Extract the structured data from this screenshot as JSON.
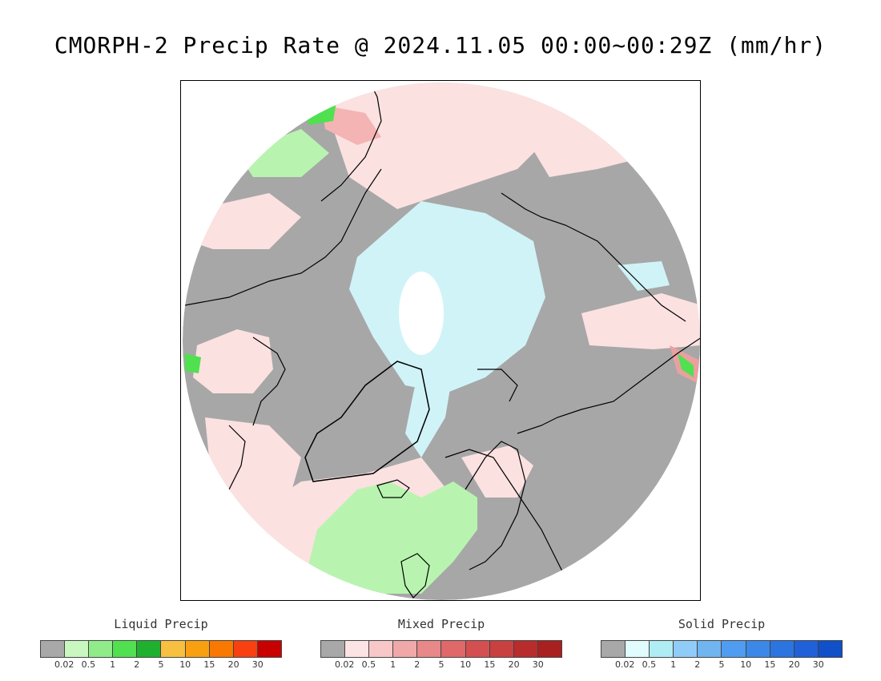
{
  "title": "CMORPH-2 Precip Rate @ 2024.11.05 00:00~00:29Z (mm/hr)",
  "map": {
    "projection": "north polar stereographic",
    "ocean_no_precip_color": "#a7a7a7",
    "coastline_color": "#000000"
  },
  "legends": [
    {
      "title": "Liquid Precip",
      "colors": [
        "#a8a8a8",
        "#c8f8c0",
        "#90ec88",
        "#50e050",
        "#20b030",
        "#f8c040",
        "#f8a010",
        "#f87800",
        "#f84010",
        "#c80000"
      ],
      "ticks": [
        "0.02",
        "0.5",
        "1",
        "2",
        "5",
        "10",
        "15",
        "20",
        "30"
      ]
    },
    {
      "title": "Mixed Precip",
      "colors": [
        "#a8a8a8",
        "#fce4e4",
        "#f8c8c8",
        "#f0a8a8",
        "#e88888",
        "#e06868",
        "#d45050",
        "#c84040",
        "#b82c2c",
        "#a82020"
      ],
      "ticks": [
        "0.02",
        "0.5",
        "1",
        "2",
        "5",
        "10",
        "15",
        "20",
        "30"
      ]
    },
    {
      "title": "Solid Precip",
      "colors": [
        "#a8a8a8",
        "#e0fcfc",
        "#b0ecf4",
        "#90ccf8",
        "#70b4f0",
        "#509cf0",
        "#3c88e8",
        "#2c74e0",
        "#2060d8",
        "#1050c8"
      ],
      "ticks": [
        "0.02",
        "0.5",
        "1",
        "2",
        "5",
        "10",
        "15",
        "20",
        "30"
      ]
    }
  ]
}
